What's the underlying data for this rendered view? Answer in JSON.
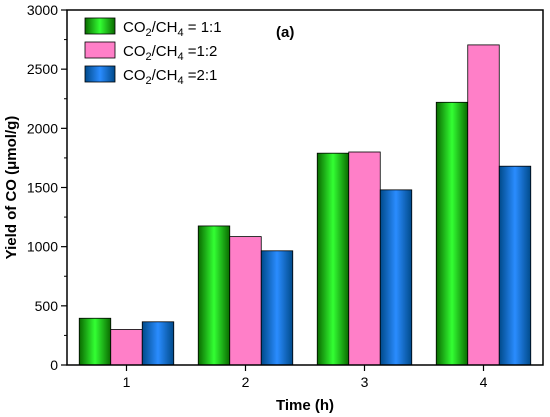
{
  "chart_data": {
    "type": "bar",
    "title": "",
    "panel_label": "(a)",
    "xlabel": "Time (h)",
    "ylabel": "Yield of CO (μmol/g)",
    "categories": [
      "1",
      "2",
      "3",
      "4"
    ],
    "ylim": [
      0,
      3000
    ],
    "yticks": [
      "0",
      "500",
      "1000",
      "1500",
      "2000",
      "2500",
      "3000"
    ],
    "grid": false,
    "legend_position": "top-left",
    "series": [
      {
        "name": "CO2/CH4 = 1:1",
        "legend": {
          "pre": "CO",
          "sub1": "2",
          "mid": "/CH",
          "sub2": "4",
          "post": " = 1:1"
        },
        "values": [
          395,
          1175,
          1790,
          2220
        ],
        "color_dark": "#0a6a00",
        "color_light": "#33ff33"
      },
      {
        "name": "CO2/CH4 =1:2",
        "legend": {
          "pre": "CO",
          "sub1": "2",
          "mid": "/CH",
          "sub2": "4",
          "post": " =1:2"
        },
        "values": [
          300,
          1085,
          1800,
          2705
        ],
        "color_dark": "#ff7fc8",
        "color_light": "#ff7fc8"
      },
      {
        "name": "CO2/CH4 =2:1",
        "legend": {
          "pre": "CO",
          "sub1": "2",
          "mid": "/CH",
          "sub2": "4",
          "post": " =2:1"
        },
        "values": [
          365,
          965,
          1480,
          1680
        ],
        "color_dark": "#004a8a",
        "color_light": "#2a8cff"
      }
    ]
  }
}
